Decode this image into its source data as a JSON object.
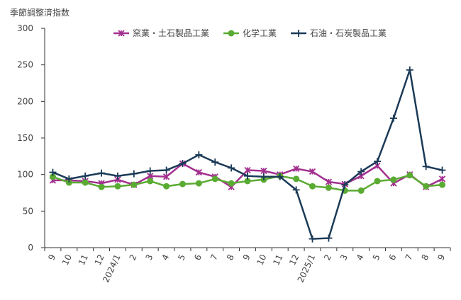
{
  "chart_data": {
    "type": "line",
    "y_label": "季節調整済指数",
    "categories": [
      "9",
      "10",
      "11",
      "12",
      "2024/1",
      "2",
      "3",
      "4",
      "5",
      "6",
      "7",
      "8",
      "9",
      "10",
      "11",
      "12",
      "2025/1",
      "2",
      "3",
      "4",
      "5",
      "6",
      "7",
      "8",
      "9"
    ],
    "series": [
      {
        "name": "窯業・土石製品工業",
        "color": "#a3308f",
        "marker": "x",
        "values": [
          92,
          92,
          91,
          88,
          93,
          86,
          98,
          97,
          115,
          103,
          97,
          83,
          106,
          105,
          100,
          108,
          104,
          90,
          87,
          98,
          112,
          88,
          100,
          83,
          94
        ]
      },
      {
        "name": "化学工業",
        "color": "#5aab32",
        "marker": "circle",
        "values": [
          97,
          89,
          89,
          83,
          84,
          86,
          91,
          84,
          87,
          88,
          94,
          88,
          91,
          93,
          98,
          94,
          84,
          82,
          78,
          78,
          91,
          93,
          99,
          84,
          86
        ]
      },
      {
        "name": "石油・石炭製品工業",
        "color": "#1b3a57",
        "marker": "plus",
        "values": [
          103,
          94,
          98,
          102,
          98,
          101,
          105,
          106,
          115,
          127,
          117,
          109,
          98,
          97,
          97,
          79,
          12,
          13,
          86,
          104,
          118,
          177,
          243,
          111,
          106
        ]
      }
    ],
    "ylim": [
      0,
      300
    ],
    "yticks": [
      0,
      50,
      100,
      150,
      200,
      250,
      300
    ],
    "grid": false
  }
}
